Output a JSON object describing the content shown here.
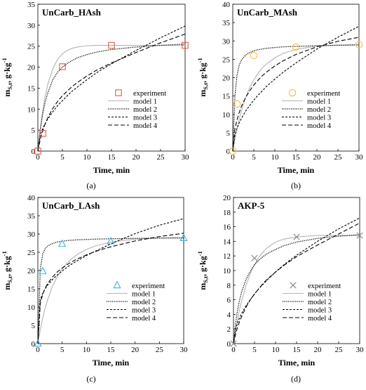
{
  "figure": {
    "panels": [
      {
        "label": "(a)"
      },
      {
        "label": "(b)"
      },
      {
        "label": "(c)"
      },
      {
        "label": "(d)"
      }
    ]
  },
  "colors": {
    "experiment_a": "#e8574b",
    "experiment_b": "#f2c14e",
    "experiment_c": "#43b0d8",
    "experiment_d": "#8a8a8a",
    "model_1": "#b3b3b3",
    "axis": "#000000"
  },
  "chart_data": [
    {
      "type": "line",
      "title": "UnCarb_HAsh",
      "xlabel": "Time, min",
      "ylabel": "m_S,t, g·kg^-1",
      "xlim": [
        0,
        30
      ],
      "ylim": [
        0,
        35
      ],
      "xticks": [
        0,
        5,
        10,
        15,
        20,
        25,
        30
      ],
      "yticks": [
        0,
        5,
        10,
        15,
        20,
        25,
        30,
        35
      ],
      "legend": [
        "experiment",
        "model 1",
        "model 2",
        "model 3",
        "model 4"
      ],
      "experiment": {
        "marker": "square",
        "x": [
          0,
          1,
          5,
          15,
          30
        ],
        "y": [
          0,
          4.2,
          20.1,
          25.2,
          25.2
        ]
      },
      "series": [
        {
          "name": "model 1",
          "x": [
            0,
            0.5,
            1,
            1.5,
            2,
            3,
            4,
            5,
            6,
            7,
            8,
            10,
            12,
            15,
            20,
            25,
            30
          ],
          "y": [
            0,
            5.3,
            9.7,
            13.1,
            15.8,
            19.5,
            21.8,
            23.2,
            24.0,
            24.5,
            24.8,
            25.1,
            25.2,
            25.2,
            25.2,
            25.2,
            25.2
          ]
        },
        {
          "name": "model 2",
          "x": [
            0,
            0.5,
            1,
            1.5,
            2,
            3,
            4,
            5,
            6,
            7,
            8,
            10,
            12,
            15,
            20,
            25,
            30
          ],
          "y": [
            0,
            5.2,
            8.9,
            11.7,
            13.8,
            16.9,
            18.8,
            20.0,
            20.9,
            21.6,
            22.2,
            23.0,
            23.6,
            24.2,
            24.8,
            25.2,
            25.5
          ]
        },
        {
          "name": "model 3",
          "x": [
            0,
            0.5,
            1,
            1.5,
            2,
            3,
            4,
            5,
            6,
            7,
            8,
            10,
            12,
            15,
            20,
            25,
            30
          ],
          "y": [
            0,
            3.8,
            5.4,
            6.6,
            7.6,
            9.3,
            10.8,
            12.0,
            13.2,
            14.3,
            15.2,
            17.0,
            18.7,
            20.8,
            24.0,
            27.0,
            29.8
          ]
        },
        {
          "name": "model 4",
          "x": [
            0,
            0.5,
            1,
            1.5,
            2,
            3,
            4,
            5,
            6,
            7,
            8,
            10,
            12,
            15,
            20,
            25,
            30
          ],
          "y": [
            0,
            2.8,
            4.9,
            6.5,
            7.9,
            10.1,
            11.8,
            13.2,
            14.3,
            15.4,
            16.3,
            17.9,
            19.3,
            21.0,
            23.5,
            25.8,
            27.9
          ]
        }
      ]
    },
    {
      "type": "line",
      "title": "UnCarb_MAsh",
      "xlabel": "Time, min",
      "ylabel": "m_S,t, g·kg^-1",
      "xlim": [
        0,
        30
      ],
      "ylim": [
        0,
        40
      ],
      "xticks": [
        0,
        5,
        10,
        15,
        20,
        25,
        30
      ],
      "yticks": [
        0,
        5,
        10,
        15,
        20,
        25,
        30,
        35,
        40
      ],
      "legend": [
        "experiment",
        "model 1",
        "model 2",
        "model 3",
        "model 4"
      ],
      "experiment": {
        "marker": "circle",
        "x": [
          0,
          1,
          5,
          15,
          30
        ],
        "y": [
          0,
          12.8,
          26.0,
          28.3,
          29.0
        ]
      },
      "series": [
        {
          "name": "model 1",
          "x": [
            0,
            0.5,
            1,
            1.5,
            2,
            3,
            4,
            5,
            6,
            7,
            8,
            10,
            12,
            15,
            20,
            25,
            30
          ],
          "y": [
            0,
            3.3,
            6.1,
            8.6,
            10.8,
            14.4,
            17.2,
            19.4,
            21.2,
            22.6,
            23.7,
            25.4,
            26.6,
            27.7,
            28.6,
            28.9,
            29.0
          ]
        },
        {
          "name": "model 2",
          "x": [
            0,
            0.5,
            1,
            1.5,
            2,
            3,
            4,
            5,
            6,
            7,
            8,
            10,
            12,
            15,
            20,
            25,
            30
          ],
          "y": [
            0,
            14.8,
            20.7,
            23.3,
            24.7,
            26.1,
            26.8,
            27.3,
            27.6,
            27.8,
            28.0,
            28.2,
            28.4,
            28.5,
            28.7,
            28.8,
            28.9
          ]
        },
        {
          "name": "model 3",
          "x": [
            0,
            0.5,
            1,
            1.5,
            2,
            3,
            4,
            5,
            6,
            7,
            8,
            10,
            12,
            15,
            20,
            25,
            30
          ],
          "y": [
            0,
            4.4,
            6.2,
            7.6,
            8.8,
            10.8,
            12.4,
            13.9,
            15.2,
            16.4,
            17.6,
            19.6,
            21.5,
            24.0,
            27.8,
            31.0,
            34.0
          ]
        },
        {
          "name": "model 4",
          "x": [
            0,
            0.5,
            1,
            1.5,
            2,
            3,
            4,
            5,
            6,
            7,
            8,
            10,
            12,
            15,
            20,
            25,
            30
          ],
          "y": [
            0,
            6.0,
            8.5,
            10.4,
            12.0,
            14.5,
            16.4,
            18.0,
            19.3,
            20.5,
            21.5,
            23.2,
            24.6,
            26.3,
            28.4,
            29.9,
            31.0
          ]
        }
      ]
    },
    {
      "type": "line",
      "title": "UnCarb_LAsh",
      "xlabel": "Time, min",
      "ylabel": "m_S,t, g·kg^-1",
      "xlim": [
        0,
        30
      ],
      "ylim": [
        0,
        40
      ],
      "xticks": [
        0,
        5,
        10,
        15,
        20,
        25,
        30
      ],
      "yticks": [
        0,
        5,
        10,
        15,
        20,
        25,
        30,
        35,
        40
      ],
      "legend": [
        "experiment",
        "model 1",
        "model 2",
        "model 3",
        "model 4"
      ],
      "experiment": {
        "marker": "triangle",
        "x": [
          0,
          1,
          5,
          15,
          30
        ],
        "y": [
          0,
          19.8,
          27.3,
          28.0,
          28.9
        ]
      },
      "series": [
        {
          "name": "model 1",
          "x": [
            0,
            0.5,
            1,
            1.5,
            2,
            3,
            4,
            5,
            6,
            7,
            8,
            10,
            12,
            15,
            20,
            25,
            30
          ],
          "y": [
            0,
            3.8,
            7.0,
            9.7,
            12.0,
            15.7,
            18.4,
            20.4,
            22.0,
            23.3,
            24.3,
            25.8,
            26.8,
            27.8,
            28.6,
            28.9,
            29.0
          ]
        },
        {
          "name": "model 2",
          "x": [
            0,
            0.5,
            1,
            1.5,
            2,
            3,
            4,
            5,
            6,
            7,
            8,
            10,
            12,
            15,
            20,
            25,
            30
          ],
          "y": [
            0,
            20.5,
            24.5,
            26.0,
            26.7,
            27.4,
            27.8,
            28.0,
            28.2,
            28.3,
            28.4,
            28.5,
            28.6,
            28.7,
            28.8,
            28.9,
            28.9
          ]
        },
        {
          "name": "model 3",
          "x": [
            0,
            0.5,
            1,
            1.5,
            2,
            3,
            4,
            5,
            6,
            7,
            8,
            10,
            12,
            15,
            20,
            25,
            30
          ],
          "y": [
            0,
            12.0,
            13.8,
            15.0,
            16.0,
            17.5,
            18.8,
            19.9,
            20.9,
            21.8,
            22.6,
            24.1,
            25.4,
            27.3,
            30.1,
            32.4,
            34.2
          ]
        },
        {
          "name": "model 4",
          "x": [
            0,
            0.5,
            1,
            1.5,
            2,
            3,
            4,
            5,
            6,
            7,
            8,
            10,
            12,
            15,
            20,
            25,
            30
          ],
          "y": [
            0,
            11.0,
            13.5,
            15.2,
            16.4,
            18.2,
            19.6,
            20.7,
            21.6,
            22.4,
            23.1,
            24.3,
            25.3,
            26.5,
            28.1,
            29.3,
            30.2
          ]
        }
      ]
    },
    {
      "type": "line",
      "title": "AKP-5",
      "xlabel": "Time, min",
      "ylabel": "m_S,t, g·kg^-1",
      "xlim": [
        0,
        30
      ],
      "ylim": [
        0,
        20
      ],
      "xticks": [
        0,
        5,
        10,
        15,
        20,
        25,
        30
      ],
      "yticks": [
        0,
        2,
        4,
        6,
        8,
        10,
        12,
        14,
        16,
        18,
        20
      ],
      "legend": [
        "experiment",
        "model 1",
        "model 2",
        "model 3",
        "model 4"
      ],
      "experiment": {
        "marker": "x",
        "x": [
          0,
          5,
          15,
          30
        ],
        "y": [
          0,
          11.7,
          14.6,
          14.8
        ]
      },
      "series": [
        {
          "name": "model 1",
          "x": [
            0,
            0.5,
            1,
            1.5,
            2,
            3,
            4,
            5,
            6,
            7,
            8,
            10,
            12,
            15,
            20,
            25,
            30
          ],
          "y": [
            0,
            1.8,
            3.4,
            4.8,
            6.0,
            8.0,
            9.6,
            10.8,
            11.8,
            12.5,
            13.1,
            13.9,
            14.3,
            14.6,
            14.8,
            14.8,
            14.8
          ]
        },
        {
          "name": "model 2",
          "x": [
            0,
            0.5,
            1,
            1.5,
            2,
            3,
            4,
            5,
            6,
            7,
            8,
            10,
            12,
            15,
            20,
            25,
            30
          ],
          "y": [
            0,
            2.8,
            4.7,
            6.1,
            7.2,
            8.8,
            9.9,
            10.8,
            11.4,
            11.9,
            12.3,
            12.9,
            13.4,
            13.9,
            14.4,
            14.7,
            14.9
          ]
        },
        {
          "name": "model 3",
          "x": [
            0,
            0.5,
            1,
            1.5,
            2,
            3,
            4,
            5,
            6,
            7,
            8,
            10,
            12,
            15,
            20,
            25,
            30
          ],
          "y": [
            0,
            2.0,
            2.9,
            3.6,
            4.2,
            5.2,
            6.0,
            6.8,
            7.5,
            8.1,
            8.7,
            9.8,
            10.8,
            12.1,
            14.0,
            15.7,
            17.2
          ]
        },
        {
          "name": "model 4",
          "x": [
            0,
            0.5,
            1,
            1.5,
            2,
            3,
            4,
            5,
            6,
            7,
            8,
            10,
            12,
            15,
            20,
            25,
            30
          ],
          "y": [
            0,
            1.3,
            2.3,
            3.1,
            3.8,
            5.0,
            6.0,
            6.8,
            7.5,
            8.2,
            8.8,
            9.8,
            10.7,
            11.9,
            13.5,
            15.0,
            16.5
          ]
        }
      ]
    }
  ]
}
